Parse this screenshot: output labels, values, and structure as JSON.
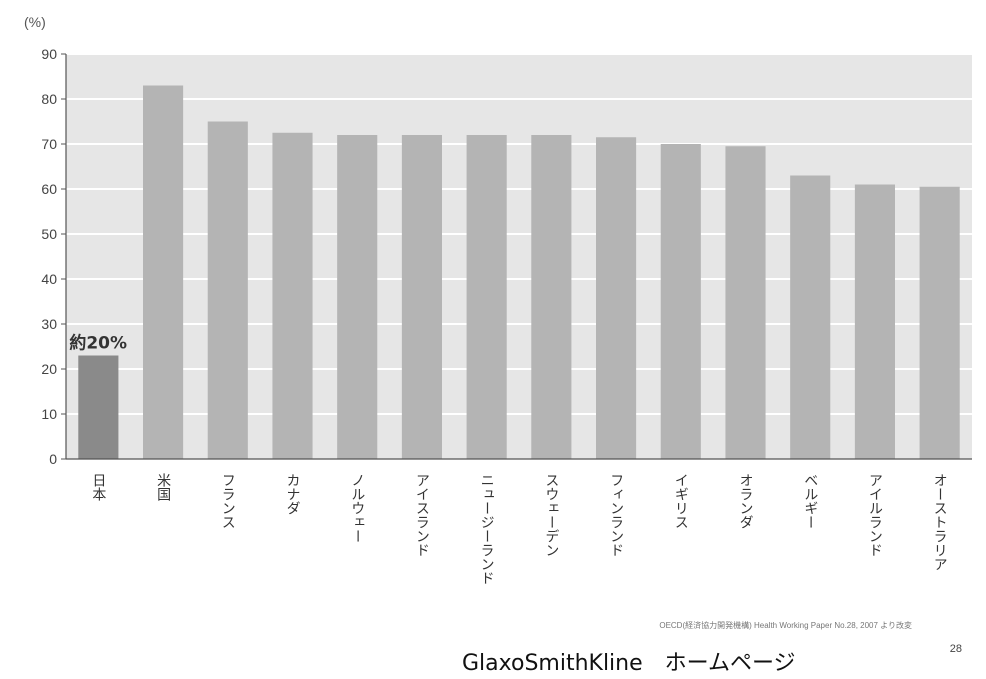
{
  "chart_data": {
    "type": "bar",
    "unit_label": "(%)",
    "categories": [
      "日本",
      "米国",
      "フランス",
      "カナダ",
      "ノルウェー",
      "アイスランド",
      "ニュージーランド",
      "スウェーデン",
      "フィンランド",
      "イギリス",
      "オランダ",
      "ベルギー",
      "アイルランド",
      "オーストラリア"
    ],
    "values": [
      23,
      83,
      75,
      72.5,
      72,
      72,
      72,
      72,
      71.5,
      70,
      69.5,
      63,
      61,
      60.5
    ],
    "ylim": [
      0,
      90
    ],
    "yticks": [
      0,
      10,
      20,
      30,
      40,
      50,
      60,
      70,
      80,
      90
    ],
    "grid": true,
    "highlight_index": 0,
    "data_label": "約20%",
    "colors": {
      "bar": "#b4b4b4",
      "highlight": "#8a8a8a",
      "plot_bg": "#e6e6e6",
      "grid": "#ffffff"
    }
  },
  "source_text": "OECD(経済協力開発機構) Health Working Paper No.28, 2007 より改変",
  "footer_text": "GlaxoSmithKline　ホームページ",
  "page_number": "28"
}
